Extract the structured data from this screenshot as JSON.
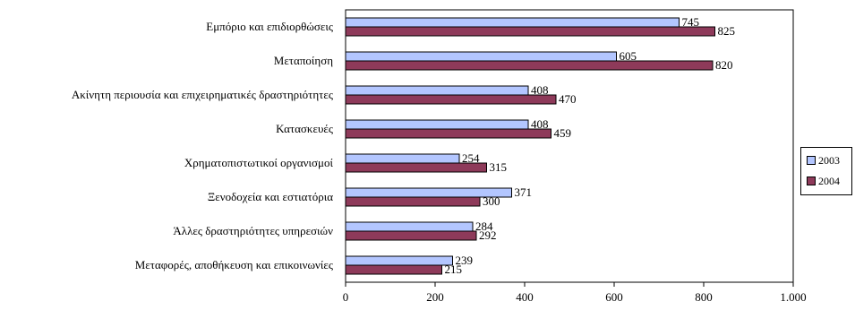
{
  "chart_data": {
    "type": "bar",
    "orientation": "horizontal",
    "categories": [
      "Εμπόριο και επιδιορθώσεις",
      "Μεταποίηση",
      "Ακίνητη περιουσία και επιχειρηματικές δραστηριότητες",
      "Κατασκευές",
      "Χρηματοπιστωτικοί οργανισμοί",
      "Ξενοδοχεία και εστιατόρια",
      "Άλλες δραστηριότητες υπηρεσιών",
      "Μεταφορές, αποθήκευση και επικοινωνίες"
    ],
    "series": [
      {
        "name": "2003",
        "values": [
          745,
          605,
          408,
          408,
          254,
          371,
          284,
          239
        ],
        "color": "#b3c6ff"
      },
      {
        "name": "2004",
        "values": [
          825,
          820,
          470,
          459,
          315,
          300,
          292,
          215
        ],
        "color": "#8e3a5a"
      }
    ],
    "data_labels": {
      "2003": [
        "745",
        "605",
        "408",
        "408",
        "254",
        "371",
        "284",
        "239"
      ],
      "2004": [
        "825",
        "820",
        "470",
        "459",
        "315",
        "300",
        "292",
        "215"
      ]
    },
    "x_ticks": [
      "0",
      "200",
      "400",
      "600",
      "800",
      "1.000"
    ],
    "xlim": [
      0,
      1000
    ],
    "grid": false,
    "legend_position": "right"
  }
}
